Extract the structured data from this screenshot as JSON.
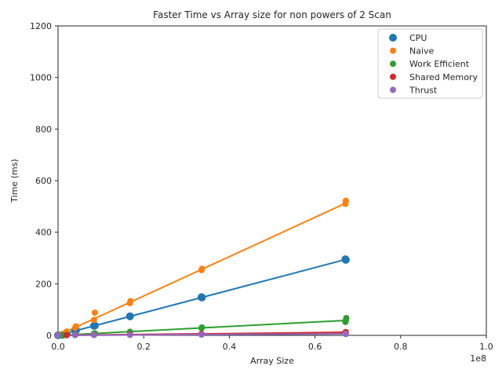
{
  "chart_data": {
    "type": "scatter",
    "title": "Faster Time vs Array size for non powers of 2 Scan",
    "xlabel": "Array Size",
    "ylabel": "Time (ms)",
    "x_offset_label": "1e8",
    "xlim": [
      0,
      1.0
    ],
    "ylim": [
      0,
      1200
    ],
    "x_ticks": [
      "0.0",
      "0.2",
      "0.4",
      "0.6",
      "0.8",
      "1.0"
    ],
    "y_ticks": [
      "0",
      "200",
      "400",
      "600",
      "800",
      "1000",
      "1200"
    ],
    "x_tick_values": [
      0,
      0.2,
      0.4,
      0.6,
      0.8,
      1.0
    ],
    "y_tick_values": [
      0,
      200,
      400,
      600,
      800,
      1000,
      1200
    ],
    "grid": false,
    "legend_position": "top-right",
    "series": [
      {
        "name": "CPU",
        "color": "#1f77b4",
        "marker_size": "large",
        "points": [
          [
            0.0,
            0.5
          ],
          [
            0.01,
            2
          ],
          [
            0.02,
            5
          ],
          [
            0.04,
            18
          ],
          [
            0.042,
            20
          ],
          [
            0.084,
            37
          ],
          [
            0.086,
            38
          ],
          [
            0.168,
            74
          ],
          [
            0.335,
            148
          ],
          [
            0.336,
            147
          ],
          [
            0.671,
            295
          ],
          [
            0.672,
            293
          ]
        ],
        "fit": [
          [
            0,
            0
          ],
          [
            0.671,
            294
          ]
        ]
      },
      {
        "name": "Naive",
        "color": "#ff7f0e",
        "marker_size": "small",
        "points": [
          [
            0.0,
            1
          ],
          [
            0.01,
            5
          ],
          [
            0.02,
            15
          ],
          [
            0.04,
            30
          ],
          [
            0.042,
            35
          ],
          [
            0.084,
            60
          ],
          [
            0.086,
            88
          ],
          [
            0.168,
            125
          ],
          [
            0.169,
            133
          ],
          [
            0.335,
            253
          ],
          [
            0.336,
            258
          ],
          [
            0.671,
            510
          ],
          [
            0.672,
            522
          ]
        ],
        "fit": [
          [
            0,
            0
          ],
          [
            0.671,
            512
          ]
        ]
      },
      {
        "name": "Work Efficient",
        "color": "#2ca02c",
        "marker_size": "small",
        "points": [
          [
            0.0,
            0.5
          ],
          [
            0.01,
            1
          ],
          [
            0.02,
            2
          ],
          [
            0.04,
            3
          ],
          [
            0.084,
            7
          ],
          [
            0.086,
            8
          ],
          [
            0.168,
            14
          ],
          [
            0.335,
            28
          ],
          [
            0.336,
            31
          ],
          [
            0.671,
            52
          ],
          [
            0.672,
            58
          ],
          [
            0.673,
            67
          ]
        ],
        "fit": [
          [
            0,
            0
          ],
          [
            0.671,
            58
          ]
        ]
      },
      {
        "name": "Shared Memory",
        "color": "#d62728",
        "marker_size": "small",
        "points": [
          [
            0.0,
            0.2
          ],
          [
            0.02,
            0.8
          ],
          [
            0.04,
            1.5
          ],
          [
            0.084,
            2
          ],
          [
            0.168,
            4
          ],
          [
            0.335,
            6
          ],
          [
            0.671,
            12
          ],
          [
            0.672,
            13
          ]
        ],
        "fit": [
          [
            0,
            0
          ],
          [
            0.671,
            12
          ]
        ]
      },
      {
        "name": "Thrust",
        "color": "#9467bd",
        "marker_size": "small",
        "points": [
          [
            0.0,
            0.3
          ],
          [
            0.04,
            1
          ],
          [
            0.084,
            1.5
          ],
          [
            0.168,
            2
          ],
          [
            0.335,
            3
          ],
          [
            0.671,
            6
          ],
          [
            0.672,
            5
          ]
        ],
        "fit": [
          [
            0,
            0
          ],
          [
            0.671,
            6
          ]
        ]
      }
    ]
  }
}
